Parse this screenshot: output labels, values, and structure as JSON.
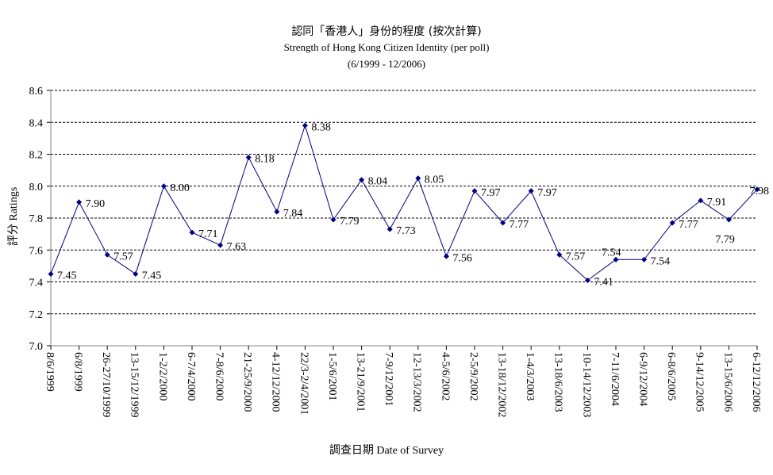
{
  "chart_data": {
    "type": "line",
    "title": "認同「香港人」身份的程度 (按次計算)",
    "subtitle": "Strength of Hong Kong Citizen Identity (per poll)",
    "date_range": "(6/1999 - 12/2006)",
    "xlabel_zh": "調查日期",
    "xlabel_en": "Date of Survey",
    "ylabel_zh": "評分",
    "ylabel_en": "Ratings",
    "ylim": [
      7.0,
      8.6
    ],
    "yticks": [
      "7.0",
      "7.2",
      "7.4",
      "7.6",
      "7.8",
      "8.0",
      "8.2",
      "8.4",
      "8.6"
    ],
    "grid": true,
    "categories": [
      "8/6/1999",
      "6/8/1999",
      "26-27/10/1999",
      "13-15/12/1999",
      "1-2/2/2000",
      "6-7/4/2000",
      "7-8/6/2000",
      "21-25/9/2000",
      "4-12/12/2000",
      "22/3-2/4/2001",
      "1-5/6/2001",
      "13-21/9/2001",
      "7-9/12/2001",
      "12-13/3/2002",
      "4-5/6/2002",
      "2-5/9/2002",
      "13-18/12/2002",
      "1-4/3/2003",
      "13-18/6/2003",
      "10-14/12/2003",
      "7-11/6/2004",
      "6-9/12/2004",
      "6-8/6/2005",
      "9-14/12/2005",
      "13-15/6/2006",
      "6-12/12/2006"
    ],
    "values": [
      7.45,
      7.9,
      7.57,
      7.45,
      8.0,
      7.71,
      7.63,
      8.18,
      7.84,
      8.38,
      7.79,
      8.04,
      7.73,
      8.05,
      7.56,
      7.97,
      7.77,
      7.97,
      7.57,
      7.41,
      7.54,
      7.54,
      7.77,
      7.91,
      7.79,
      7.98
    ],
    "data_labels": [
      "7.45",
      "7.90",
      "7.57",
      "7.45",
      "8.00",
      "7.71",
      "7.63",
      "8.18",
      "7.84",
      "8.38",
      "7.79",
      "8.04",
      "7.73",
      "8.05",
      "7.56",
      "7.97",
      "7.77",
      "7.97",
      "7.57",
      "7.41",
      "7.54",
      "7.54",
      "7.77",
      "7.91",
      "7.79",
      "7.98"
    ],
    "colors": {
      "line": "#000080",
      "grid": "#000000",
      "axis": "#808080"
    }
  }
}
